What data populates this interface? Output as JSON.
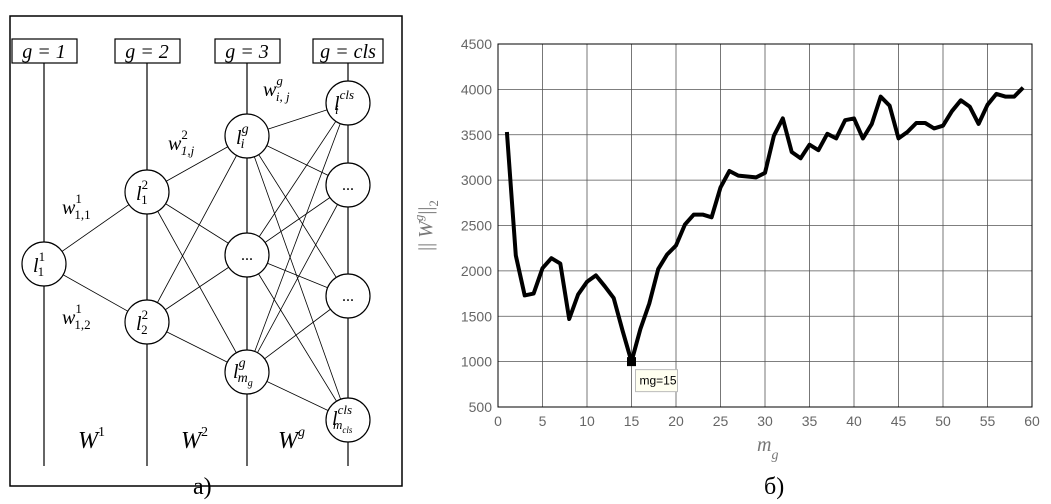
{
  "panel_a": {
    "caption": "а)",
    "column_headers": [
      "g = 1",
      "g = 2",
      "g = 3",
      "g = cls"
    ],
    "nodes": {
      "l11": {
        "base": "l",
        "sup": "1",
        "sub": "1"
      },
      "l12": {
        "base": "l",
        "sup": "2",
        "sub": "1"
      },
      "l22": {
        "base": "l",
        "sup": "2",
        "sub": "2"
      },
      "lig": {
        "base": "l",
        "sup": "g",
        "sub": "i"
      },
      "dots_g": "...",
      "lmg": {
        "base": "l",
        "sup": "g",
        "sub": "m",
        "subsub": "g"
      },
      "licls": {
        "base": "l",
        "sup": "cls",
        "sub": "i"
      },
      "dots_cls1": "...",
      "dots_cls2": "...",
      "lmcls": {
        "base": "l",
        "sup": "cls",
        "sub": "m",
        "subsub": "cls"
      }
    },
    "weights": {
      "w111": {
        "base": "w",
        "sup": "1",
        "sub": "1,1"
      },
      "w112": {
        "base": "w",
        "sup": "1",
        "sub": "1,2"
      },
      "w21j": {
        "base": "w",
        "sup": "2",
        "sub": "1,j"
      },
      "wgij": {
        "base": "w",
        "sup": "g",
        "sub": "i, j"
      }
    },
    "matrices": {
      "W1": {
        "base": "W",
        "sup": "1"
      },
      "W2": {
        "base": "W",
        "sup": "2"
      },
      "Wg": {
        "base": "W",
        "sup": "g"
      }
    }
  },
  "panel_b": {
    "caption": "б)",
    "annotation": "mg=15",
    "chart_data": {
      "type": "line",
      "xlabel": {
        "base": "m",
        "sub": "g"
      },
      "ylabel": {
        "prefix": "|| ",
        "base": "W",
        "sup": "g",
        "suffix": "||",
        "sub": "2"
      },
      "xlim": [
        0,
        60
      ],
      "ylim": [
        500,
        4500
      ],
      "xticks": [
        0,
        5,
        10,
        15,
        20,
        25,
        30,
        35,
        40,
        45,
        50,
        55,
        60
      ],
      "yticks": [
        500,
        1000,
        1500,
        2000,
        2500,
        3000,
        3500,
        4000,
        4500
      ],
      "grid": true,
      "marker": {
        "x": 15,
        "y": 1000
      },
      "series": [
        {
          "x": [
            1,
            2,
            3,
            4,
            5,
            6,
            7,
            8,
            9,
            10,
            11,
            12,
            13,
            14,
            15,
            16,
            17,
            18,
            19,
            20,
            21,
            22,
            23,
            24,
            25,
            26,
            27,
            28,
            29,
            30,
            31,
            32,
            33,
            34,
            35,
            36,
            37,
            38,
            39,
            40,
            41,
            42,
            43,
            44,
            45,
            46,
            47,
            48,
            49,
            50,
            51,
            52,
            53,
            54,
            55,
            56,
            57,
            58,
            59
          ],
          "y": [
            3530,
            2170,
            1730,
            1750,
            2030,
            2140,
            2080,
            1470,
            1740,
            1880,
            1950,
            1830,
            1700,
            1340,
            1000,
            1360,
            1640,
            2020,
            2180,
            2280,
            2510,
            2620,
            2620,
            2590,
            2920,
            3100,
            3050,
            3040,
            3030,
            3080,
            3490,
            3680,
            3310,
            3240,
            3390,
            3330,
            3510,
            3460,
            3660,
            3680,
            3460,
            3620,
            3920,
            3820,
            3460,
            3530,
            3630,
            3630,
            3570,
            3600,
            3760,
            3880,
            3810,
            3620,
            3830,
            3950,
            3920,
            3920,
            4020
          ]
        }
      ]
    }
  }
}
